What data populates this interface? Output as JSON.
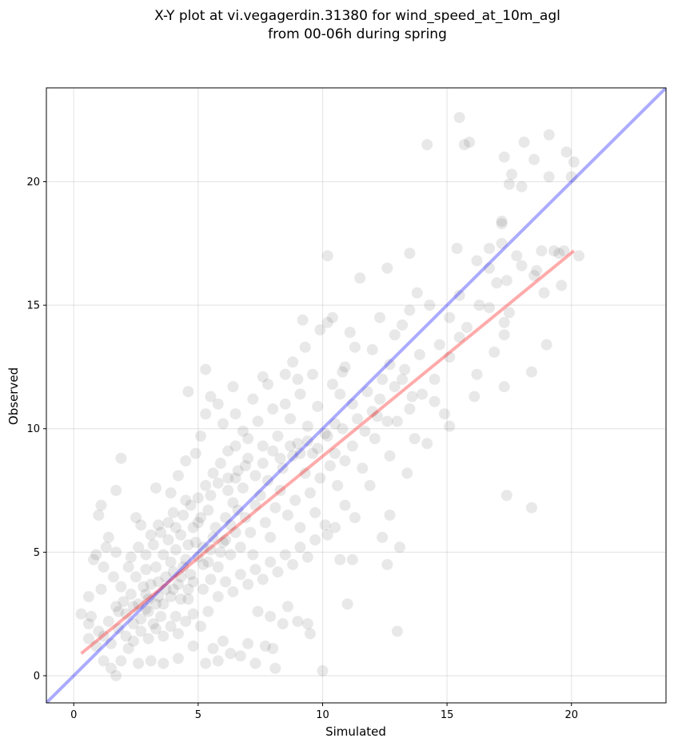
{
  "chart_data": {
    "type": "scatter",
    "title_line1": "X-Y plot at vi.vegagerdin.31380 for wind_speed_at_10m_agl",
    "title_line2": "from 00-06h during spring",
    "xlabel": "Simulated",
    "ylabel": "Observed",
    "xlim": [
      -1.1,
      23.8
    ],
    "ylim": [
      -1.1,
      23.8
    ],
    "xticks": [
      0,
      5,
      10,
      15,
      20
    ],
    "yticks": [
      0,
      5,
      10,
      15,
      20
    ],
    "grid": true,
    "point_color": "#000000",
    "point_alpha": 0.09,
    "identity_line": {
      "color": "#0000ff",
      "alpha": 0.33,
      "from": [
        -1.1,
        -1.1
      ],
      "to": [
        23.8,
        23.8
      ]
    },
    "fit_line": {
      "color": "#ff0000",
      "alpha": 0.33,
      "from": [
        0.3,
        0.9
      ],
      "to": [
        20.1,
        17.2
      ]
    },
    "points": [
      [
        15.5,
        22.6
      ],
      [
        15.7,
        21.5
      ],
      [
        15.9,
        21.6
      ],
      [
        14.2,
        21.5
      ],
      [
        18.1,
        21.6
      ],
      [
        19.1,
        21.9
      ],
      [
        19.8,
        21.2
      ],
      [
        20.1,
        20.8
      ],
      [
        17.3,
        21.0
      ],
      [
        17.6,
        20.3
      ],
      [
        17.5,
        19.9
      ],
      [
        18.0,
        19.8
      ],
      [
        19.1,
        20.2
      ],
      [
        20.0,
        20.2
      ],
      [
        18.5,
        20.9
      ],
      [
        17.2,
        18.4
      ],
      [
        17.2,
        18.3
      ],
      [
        16.7,
        17.3
      ],
      [
        17.2,
        17.5
      ],
      [
        17.8,
        17.0
      ],
      [
        18.0,
        16.6
      ],
      [
        18.6,
        16.4
      ],
      [
        18.8,
        17.2
      ],
      [
        19.3,
        17.2
      ],
      [
        19.5,
        17.1
      ],
      [
        19.7,
        17.2
      ],
      [
        20.3,
        17.0
      ],
      [
        19.6,
        15.8
      ],
      [
        18.9,
        15.5
      ],
      [
        18.5,
        16.2
      ],
      [
        17.4,
        16.0
      ],
      [
        17.0,
        15.9
      ],
      [
        16.7,
        16.5
      ],
      [
        16.2,
        16.8
      ],
      [
        15.4,
        17.3
      ],
      [
        13.5,
        17.1
      ],
      [
        10.2,
        17.0
      ],
      [
        12.6,
        16.5
      ],
      [
        11.5,
        16.1
      ],
      [
        15.5,
        15.4
      ],
      [
        16.3,
        15.0
      ],
      [
        16.7,
        14.9
      ],
      [
        17.5,
        14.7
      ],
      [
        17.3,
        14.3
      ],
      [
        17.3,
        13.8
      ],
      [
        19.0,
        13.4
      ],
      [
        18.4,
        12.3
      ],
      [
        16.9,
        13.1
      ],
      [
        16.2,
        12.2
      ],
      [
        16.1,
        11.3
      ],
      [
        17.3,
        11.7
      ],
      [
        17.4,
        7.3
      ],
      [
        18.4,
        6.8
      ],
      [
        15.1,
        10.1
      ],
      [
        13.8,
        15.5
      ],
      [
        14.3,
        15.0
      ],
      [
        13.5,
        14.8
      ],
      [
        15.1,
        14.5
      ],
      [
        15.8,
        14.1
      ],
      [
        15.5,
        13.7
      ],
      [
        14.7,
        13.4
      ],
      [
        15.1,
        12.9
      ],
      [
        14.5,
        12.0
      ],
      [
        13.9,
        13.0
      ],
      [
        13.2,
        14.2
      ],
      [
        12.9,
        13.8
      ],
      [
        12.3,
        14.5
      ],
      [
        11.1,
        13.9
      ],
      [
        10.4,
        14.5
      ],
      [
        9.2,
        14.4
      ],
      [
        10.2,
        14.3
      ],
      [
        9.9,
        14.0
      ],
      [
        11.3,
        13.3
      ],
      [
        10.9,
        12.5
      ],
      [
        12.0,
        13.2
      ],
      [
        12.4,
        12.0
      ],
      [
        12.7,
        12.6
      ],
      [
        13.2,
        12.0
      ],
      [
        14.0,
        11.4
      ],
      [
        14.5,
        11.1
      ],
      [
        14.9,
        10.6
      ],
      [
        13.5,
        10.8
      ],
      [
        13.0,
        10.3
      ],
      [
        12.2,
        10.5
      ],
      [
        11.8,
        11.5
      ],
      [
        11.2,
        11.0
      ],
      [
        10.7,
        11.4
      ],
      [
        10.5,
        10.2
      ],
      [
        13.7,
        9.6
      ],
      [
        14.2,
        9.4
      ],
      [
        13.4,
        8.2
      ],
      [
        12.7,
        8.9
      ],
      [
        12.1,
        9.6
      ],
      [
        11.6,
        8.4
      ],
      [
        11.9,
        7.7
      ],
      [
        12.4,
        5.6
      ],
      [
        12.6,
        4.5
      ],
      [
        13.1,
        5.2
      ],
      [
        13.0,
        1.8
      ],
      [
        12.7,
        6.5
      ],
      [
        11.3,
        6.4
      ],
      [
        10.9,
        6.9
      ],
      [
        10.5,
        6.0
      ],
      [
        10.1,
        6.1
      ],
      [
        10.7,
        4.7
      ],
      [
        11.2,
        4.7
      ],
      [
        10.2,
        5.7
      ],
      [
        11.0,
        2.9
      ],
      [
        10.0,
        0.2
      ],
      [
        9.5,
        1.7
      ],
      [
        9.4,
        2.1
      ],
      [
        9.0,
        2.2
      ],
      [
        8.6,
        2.8
      ],
      [
        8.4,
        2.1
      ],
      [
        7.9,
        2.4
      ],
      [
        8.0,
        1.1
      ],
      [
        7.4,
        2.6
      ],
      [
        7.0,
        1.3
      ],
      [
        6.7,
        0.8
      ],
      [
        7.3,
        0.5
      ],
      [
        8.1,
        0.3
      ],
      [
        7.7,
        1.2
      ],
      [
        6.3,
        0.9
      ],
      [
        5.8,
        0.6
      ],
      [
        5.3,
        0.5
      ],
      [
        5.6,
        1.1
      ],
      [
        6.0,
        1.4
      ],
      [
        4.8,
        1.2
      ],
      [
        4.2,
        0.7
      ],
      [
        3.6,
        0.5
      ],
      [
        3.1,
        0.6
      ],
      [
        2.6,
        0.5
      ],
      [
        1.9,
        0.6
      ],
      [
        1.5,
        0.3
      ],
      [
        1.7,
        -0.0
      ],
      [
        1.2,
        0.6
      ],
      [
        2.2,
        1.1
      ],
      [
        1.0,
        1.8
      ],
      [
        0.6,
        1.5
      ],
      [
        0.3,
        2.5
      ],
      [
        0.6,
        2.1
      ],
      [
        0.7,
        2.4
      ],
      [
        0.6,
        3.2
      ],
      [
        1.1,
        3.5
      ],
      [
        0.8,
        4.7
      ],
      [
        0.9,
        4.9
      ],
      [
        1.3,
        5.2
      ],
      [
        1.7,
        5.0
      ],
      [
        1.4,
        5.6
      ],
      [
        1.2,
        4.4
      ],
      [
        1.6,
        4.0
      ],
      [
        1.0,
        6.5
      ],
      [
        1.1,
        6.9
      ],
      [
        1.7,
        7.5
      ],
      [
        1.9,
        8.8
      ],
      [
        2.5,
        6.4
      ],
      [
        2.7,
        6.1
      ],
      [
        3.1,
        5.7
      ],
      [
        3.4,
        6.1
      ],
      [
        3.3,
        7.6
      ],
      [
        3.9,
        7.4
      ],
      [
        4.2,
        8.1
      ],
      [
        4.5,
        8.7
      ],
      [
        4.9,
        9.0
      ],
      [
        5.1,
        9.7
      ],
      [
        5.3,
        10.6
      ],
      [
        5.5,
        11.3
      ],
      [
        5.3,
        12.4
      ],
      [
        4.6,
        11.5
      ],
      [
        4.0,
        6.6
      ],
      [
        4.5,
        7.1
      ],
      [
        3.8,
        5.5
      ],
      [
        2.2,
        4.4
      ],
      [
        2.5,
        4.0
      ],
      [
        2.9,
        4.3
      ],
      [
        2.3,
        3.3
      ],
      [
        2.0,
        3.0
      ],
      [
        1.8,
        2.6
      ],
      [
        2.4,
        2.1
      ],
      [
        2.9,
        2.7
      ],
      [
        3.2,
        2.1
      ],
      [
        3.6,
        2.9
      ],
      [
        3.4,
        3.8
      ],
      [
        3.9,
        3.2
      ],
      [
        4.1,
        2.4
      ],
      [
        4.6,
        3.1
      ],
      [
        4.3,
        4.0
      ],
      [
        4.8,
        3.8
      ],
      [
        4.5,
        4.7
      ],
      [
        4.9,
        5.4
      ],
      [
        5.2,
        4.5
      ],
      [
        5.5,
        5.1
      ],
      [
        5.0,
        6.2
      ],
      [
        5.4,
        6.7
      ],
      [
        5.7,
        6.0
      ],
      [
        6.0,
        5.4
      ],
      [
        5.8,
        4.4
      ],
      [
        6.3,
        4.9
      ],
      [
        6.1,
        6.4
      ],
      [
        6.5,
        5.8
      ],
      [
        6.4,
        7.0
      ],
      [
        6.9,
        6.4
      ],
      [
        6.7,
        5.2
      ],
      [
        7.1,
        5.8
      ],
      [
        7.3,
        6.9
      ],
      [
        6.8,
        7.6
      ],
      [
        7.5,
        7.3
      ],
      [
        7.7,
        6.2
      ],
      [
        7.2,
        4.9
      ],
      [
        7.9,
        5.6
      ],
      [
        8.1,
        6.8
      ],
      [
        7.8,
        7.9
      ],
      [
        8.3,
        7.5
      ],
      [
        8.6,
        6.5
      ],
      [
        8.9,
        7.1
      ],
      [
        9.1,
        6.0
      ],
      [
        8.4,
        8.4
      ],
      [
        8.8,
        8.9
      ],
      [
        9.3,
        8.2
      ],
      [
        9.5,
        7.4
      ],
      [
        9.7,
        6.6
      ],
      [
        9.0,
        9.4
      ],
      [
        9.6,
        9.0
      ],
      [
        9.9,
        8.0
      ],
      [
        10.3,
        8.5
      ],
      [
        10.6,
        7.7
      ],
      [
        10.9,
        8.7
      ],
      [
        11.2,
        9.3
      ],
      [
        10.1,
        9.8
      ],
      [
        9.4,
        10.1
      ],
      [
        8.7,
        10.4
      ],
      [
        8.2,
        9.7
      ],
      [
        7.6,
        9.3
      ],
      [
        7.0,
        8.8
      ],
      [
        6.6,
        8.3
      ],
      [
        6.2,
        9.1
      ],
      [
        6.8,
        9.9
      ],
      [
        7.4,
        10.3
      ],
      [
        8.0,
        10.8
      ],
      [
        8.5,
        11.0
      ],
      [
        9.1,
        11.4
      ],
      [
        9.8,
        10.9
      ],
      [
        10.4,
        11.8
      ],
      [
        10.8,
        12.3
      ],
      [
        9.6,
        12.2
      ],
      [
        9.0,
        12.0
      ],
      [
        8.5,
        12.2
      ],
      [
        8.8,
        12.7
      ],
      [
        7.8,
        11.8
      ],
      [
        7.2,
        11.2
      ],
      [
        6.5,
        10.6
      ],
      [
        6.0,
        10.2
      ],
      [
        5.8,
        11.0
      ],
      [
        6.4,
        11.7
      ],
      [
        7.6,
        12.1
      ],
      [
        9.3,
        13.3
      ],
      [
        2.8,
        3.6
      ],
      [
        3.0,
        3.1
      ],
      [
        3.5,
        2.4
      ],
      [
        3.7,
        3.5
      ],
      [
        4.0,
        4.2
      ],
      [
        4.2,
        3.7
      ],
      [
        4.4,
        4.4
      ],
      [
        4.7,
        4.1
      ],
      [
        5.0,
        4.8
      ],
      [
        5.2,
        5.2
      ],
      [
        5.4,
        4.6
      ],
      [
        5.6,
        5.6
      ],
      [
        5.9,
        5.0
      ],
      [
        6.1,
        5.5
      ],
      [
        6.3,
        6.1
      ],
      [
        6.6,
        6.7
      ],
      [
        3.3,
        4.4
      ],
      [
        3.6,
        4.9
      ],
      [
        3.9,
        4.6
      ],
      [
        4.1,
        5.1
      ],
      [
        4.3,
        5.7
      ],
      [
        4.6,
        5.3
      ],
      [
        4.8,
        6.0
      ],
      [
        5.1,
        6.4
      ],
      [
        2.6,
        2.9
      ],
      [
        2.9,
        3.3
      ],
      [
        3.1,
        3.7
      ],
      [
        3.4,
        3.2
      ],
      [
        3.7,
        4.0
      ],
      [
        4.0,
        3.5
      ],
      [
        4.3,
        3.1
      ],
      [
        4.6,
        3.5
      ],
      [
        1.4,
        2.2
      ],
      [
        1.7,
        2.8
      ],
      [
        2.1,
        2.5
      ],
      [
        2.4,
        2.8
      ],
      [
        2.7,
        2.3
      ],
      [
        3.0,
        2.6
      ],
      [
        3.3,
        2.9
      ],
      [
        1.9,
        3.6
      ],
      [
        5.5,
        7.3
      ],
      [
        5.8,
        7.8
      ],
      [
        6.2,
        7.5
      ],
      [
        6.5,
        8.0
      ],
      [
        6.9,
        8.5
      ],
      [
        7.3,
        8.1
      ],
      [
        7.6,
        8.6
      ],
      [
        8.0,
        9.1
      ],
      [
        8.3,
        8.8
      ],
      [
        8.7,
        9.3
      ],
      [
        9.1,
        9.0
      ],
      [
        9.4,
        9.5
      ],
      [
        9.8,
        9.2
      ],
      [
        10.2,
        9.7
      ],
      [
        10.5,
        9.0
      ],
      [
        10.8,
        10.0
      ],
      [
        11.4,
        10.4
      ],
      [
        11.7,
        9.9
      ],
      [
        12.0,
        10.7
      ],
      [
        12.3,
        11.2
      ],
      [
        12.6,
        10.3
      ],
      [
        12.9,
        11.7
      ],
      [
        13.3,
        12.4
      ],
      [
        13.6,
        11.3
      ],
      [
        5.2,
        3.5
      ],
      [
        5.5,
        3.9
      ],
      [
        5.8,
        3.2
      ],
      [
        6.1,
        3.8
      ],
      [
        6.4,
        3.4
      ],
      [
        6.7,
        4.1
      ],
      [
        7.0,
        3.7
      ],
      [
        7.3,
        4.3
      ],
      [
        7.6,
        3.9
      ],
      [
        7.9,
        4.6
      ],
      [
        8.2,
        4.2
      ],
      [
        8.5,
        4.9
      ],
      [
        8.8,
        4.5
      ],
      [
        9.1,
        5.2
      ],
      [
        9.4,
        4.8
      ],
      [
        9.7,
        5.5
      ],
      [
        2.3,
        4.8
      ],
      [
        2.6,
        5.2
      ],
      [
        2.9,
        4.9
      ],
      [
        3.2,
        5.3
      ],
      [
        3.5,
        5.8
      ],
      [
        3.8,
        6.2
      ],
      [
        4.1,
        6.0
      ],
      [
        4.4,
        6.5
      ],
      [
        4.7,
        6.9
      ],
      [
        5.0,
        7.2
      ],
      [
        5.3,
        7.7
      ],
      [
        5.6,
        8.2
      ],
      [
        5.9,
        8.6
      ],
      [
        6.2,
        8.0
      ],
      [
        6.5,
        9.3
      ],
      [
        7.0,
        9.6
      ],
      [
        0.9,
        1.2
      ],
      [
        1.2,
        1.6
      ],
      [
        1.5,
        1.3
      ],
      [
        1.8,
        1.9
      ],
      [
        2.1,
        1.6
      ],
      [
        2.4,
        1.4
      ],
      [
        2.7,
        1.8
      ],
      [
        3.0,
        1.5
      ],
      [
        3.3,
        1.9
      ],
      [
        3.6,
        1.6
      ],
      [
        3.9,
        2.0
      ],
      [
        4.2,
        1.7
      ],
      [
        4.5,
        2.2
      ],
      [
        4.8,
        2.5
      ],
      [
        5.1,
        2.0
      ],
      [
        5.4,
        2.6
      ]
    ]
  }
}
